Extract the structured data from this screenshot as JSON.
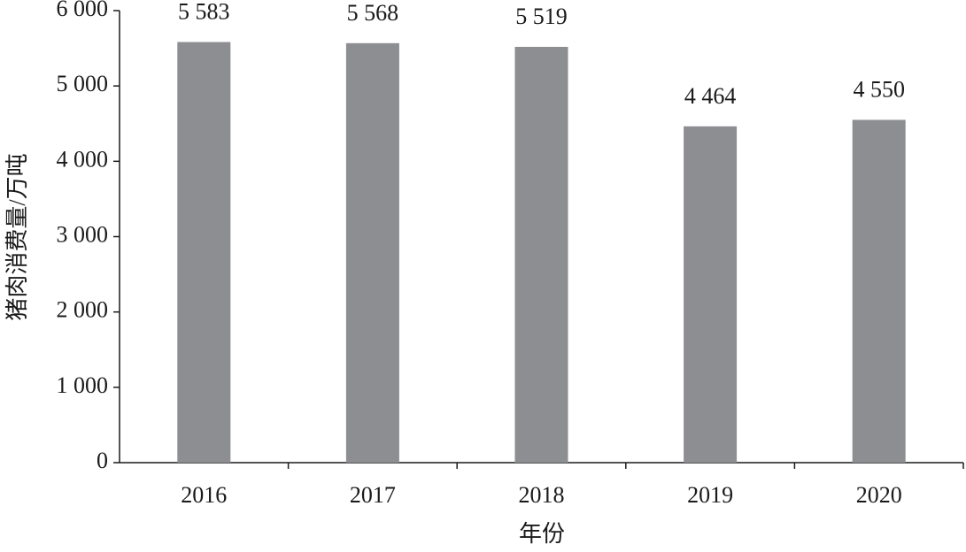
{
  "chart_data": {
    "type": "bar",
    "x_label": "年份",
    "y_label": "猪肉消费量/万吨",
    "categories": [
      "2016",
      "2017",
      "2018",
      "2019",
      "2020"
    ],
    "values": [
      5583,
      5568,
      5519,
      4464,
      4550
    ],
    "value_labels": [
      "5 583",
      "5 568",
      "5 519",
      "4 464",
      "4 550"
    ],
    "color": "#8c8e91",
    "ylim": [
      0,
      6000
    ],
    "yticks": [
      0,
      {
        "value": 1000,
        "label": "1 000"
      },
      {
        "value": 2000,
        "label": "2 000"
      },
      {
        "value": 3000,
        "label": "3 000"
      },
      {
        "value": 4000,
        "label": "4 000"
      },
      {
        "value": 5000,
        "label": "5 000"
      },
      {
        "value": 6000,
        "label": "6 000"
      }
    ],
    "grid": false
  }
}
